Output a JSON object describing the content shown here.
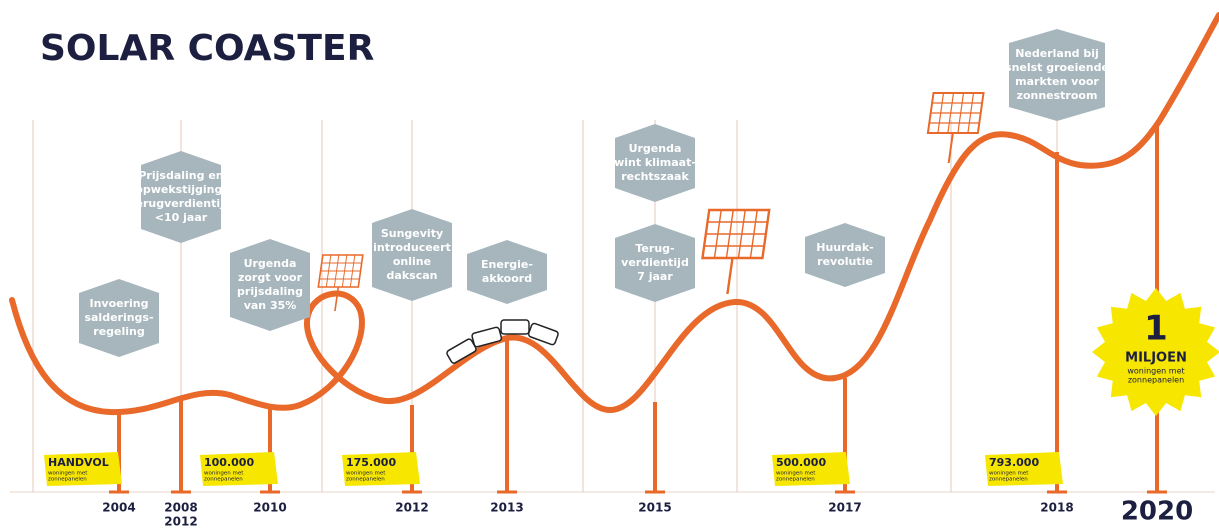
{
  "title": "SOLAR COASTER",
  "milestones": [
    {
      "lines": [
        "Invoering",
        "salderings-",
        "regeling"
      ]
    },
    {
      "lines": [
        "Prijsdaling en",
        "opwekstijging;",
        "terugverdientijd",
        "<10 jaar"
      ]
    },
    {
      "lines": [
        "Urgenda",
        "zorgt voor",
        "prijsdaling",
        "van 35%"
      ]
    },
    {
      "lines": [
        "Sungevity",
        "introduceert",
        "online",
        "dakscan"
      ]
    },
    {
      "lines": [
        "Energie-",
        "akkoord"
      ]
    },
    {
      "lines": [
        "Urgenda",
        "wint klimaat-",
        "rechtszaak"
      ]
    },
    {
      "lines": [
        "Terug-",
        "verdientijd",
        "7 jaar"
      ]
    },
    {
      "lines": [
        "Huurdak-",
        "revolutie"
      ]
    },
    {
      "lines": [
        "Nederland bij",
        "snelst groeiende",
        "markten voor",
        "zonnestroom"
      ]
    }
  ],
  "years": [
    "2004",
    "2008",
    "2012",
    "2010",
    "2012",
    "2013",
    "2015",
    "2017",
    "2018",
    "2020"
  ],
  "badges": [
    {
      "value": "HANDVOL",
      "sub": [
        "woningen met",
        "zonnepanelen"
      ]
    },
    {
      "value": "100.000",
      "sub": [
        "woningen met",
        "zonnepanelen"
      ]
    },
    {
      "value": "175.000",
      "sub": [
        "woningen met",
        "zonnepanelen"
      ]
    },
    {
      "value": "500.000",
      "sub": [
        "woningen met",
        "zonnepanelen"
      ]
    },
    {
      "value": "793.000",
      "sub": [
        "woningen met",
        "zonnepanelen"
      ]
    }
  ],
  "star": {
    "number": "1",
    "word": "MILJOEN",
    "sub": [
      "woningen met",
      "zonnepanelen"
    ]
  }
}
